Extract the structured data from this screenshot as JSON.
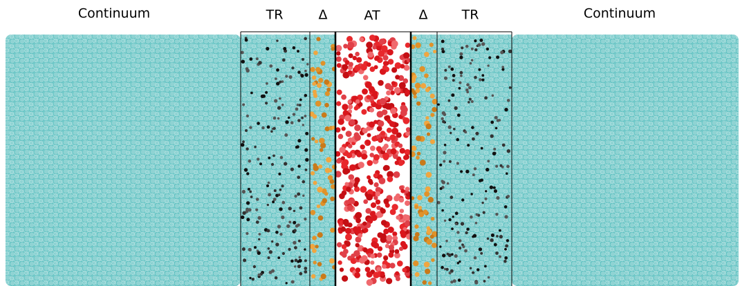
{
  "regions": [
    {
      "label": "Continuum"
    },
    {
      "label": "TR"
    },
    {
      "label": "Δ"
    },
    {
      "label": "AT"
    },
    {
      "label": "Δ"
    },
    {
      "label": "TR"
    },
    {
      "label": "Continuum"
    }
  ]
}
